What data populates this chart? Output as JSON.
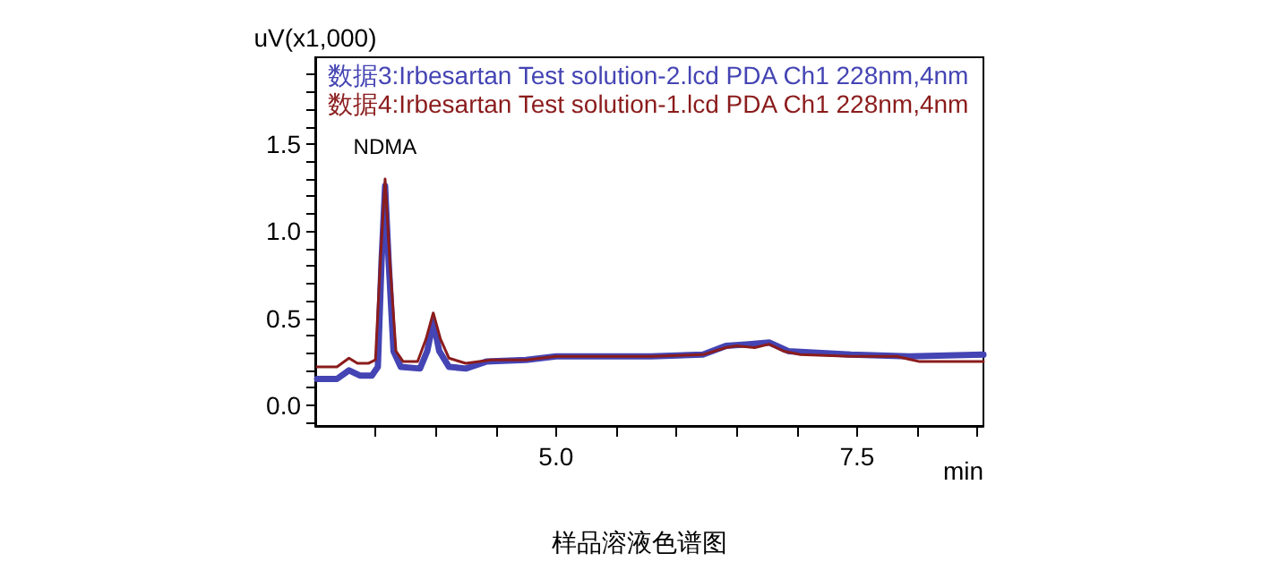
{
  "chart_data": {
    "type": "line",
    "ylabel": "uV(x1,000)",
    "xlabel": "min",
    "xlim": [
      3.0,
      8.55
    ],
    "ylim": [
      -0.12,
      2.0
    ],
    "xticks": [
      {
        "value": 3.5,
        "label": null
      },
      {
        "value": 4.0,
        "label": null
      },
      {
        "value": 4.5,
        "label": null
      },
      {
        "value": 5,
        "label": "5.0"
      },
      {
        "value": 5.5,
        "label": null
      },
      {
        "value": 6.0,
        "label": null
      },
      {
        "value": 6.5,
        "label": null
      },
      {
        "value": 7.0,
        "label": null
      },
      {
        "value": 7.5,
        "label": "7.5"
      },
      {
        "value": 8.0,
        "label": null
      },
      {
        "value": 8.5,
        "label": null
      }
    ],
    "yticks": [
      {
        "value": -0.1,
        "label": null
      },
      {
        "value": 0,
        "label": "0.0"
      },
      {
        "value": 0.1,
        "label": null
      },
      {
        "value": 0.2,
        "label": null
      },
      {
        "value": 0.3,
        "label": null
      },
      {
        "value": 0.4,
        "label": null
      },
      {
        "value": 0.5,
        "label": "0.5"
      },
      {
        "value": 0.6,
        "label": null
      },
      {
        "value": 0.7,
        "label": null
      },
      {
        "value": 0.8,
        "label": null
      },
      {
        "value": 0.9,
        "label": null
      },
      {
        "value": 1.0,
        "label": "1.0"
      },
      {
        "value": 1.1,
        "label": null
      },
      {
        "value": 1.2,
        "label": null
      },
      {
        "value": 1.3,
        "label": null
      },
      {
        "value": 1.4,
        "label": null
      },
      {
        "value": 1.5,
        "label": "1.5"
      },
      {
        "value": 1.6,
        "label": null
      },
      {
        "value": 1.7,
        "label": null
      },
      {
        "value": 1.8,
        "label": null
      },
      {
        "value": 1.9,
        "label": null
      }
    ],
    "grid": false,
    "legend": "top left",
    "marker": "none",
    "line_style": "solid",
    "series": [
      {
        "name": "数据3:Irbesartan Test solution-2.lcd PDA Ch1 228nm,4nm",
        "color": "#4444b4",
        "x": [
          3.015,
          3.18,
          3.28,
          3.37,
          3.47,
          3.52,
          3.55,
          3.58,
          3.61,
          3.65,
          3.71,
          3.87,
          3.93,
          3.98,
          4.03,
          4.11,
          4.25,
          4.42,
          4.75,
          5.0,
          5.32,
          5.79,
          6.22,
          6.41,
          6.6,
          6.77,
          6.93,
          7.45,
          7.93,
          8.55
        ],
        "values": [
          0.15,
          0.15,
          0.2,
          0.17,
          0.17,
          0.22,
          0.82,
          1.26,
          0.82,
          0.31,
          0.22,
          0.21,
          0.31,
          0.48,
          0.31,
          0.22,
          0.21,
          0.25,
          0.26,
          0.28,
          0.28,
          0.28,
          0.29,
          0.34,
          0.35,
          0.36,
          0.31,
          0.29,
          0.28,
          0.29
        ]
      },
      {
        "name": "数据4:Irbesartan Test solution-1.lcd PDA Ch1 228nm,4nm",
        "color": "#8b1c1c",
        "x": [
          3.015,
          3.18,
          3.28,
          3.35,
          3.44,
          3.5,
          3.54,
          3.58,
          3.62,
          3.67,
          3.73,
          3.85,
          3.92,
          3.98,
          4.04,
          4.11,
          4.25,
          4.46,
          4.75,
          5.0,
          5.32,
          5.79,
          6.22,
          6.41,
          6.5,
          6.65,
          6.77,
          6.89,
          7.03,
          7.45,
          7.83,
          8.02,
          8.55
        ],
        "values": [
          0.22,
          0.22,
          0.27,
          0.24,
          0.24,
          0.26,
          0.82,
          1.3,
          0.82,
          0.31,
          0.25,
          0.25,
          0.38,
          0.53,
          0.38,
          0.27,
          0.24,
          0.26,
          0.26,
          0.28,
          0.28,
          0.28,
          0.29,
          0.33,
          0.34,
          0.33,
          0.35,
          0.31,
          0.29,
          0.28,
          0.28,
          0.25,
          0.25
        ]
      }
    ],
    "annotations": [
      {
        "text": "NDMA",
        "x": 3.58,
        "y": 1.3
      },
      "样品溶液色谱图"
    ]
  }
}
